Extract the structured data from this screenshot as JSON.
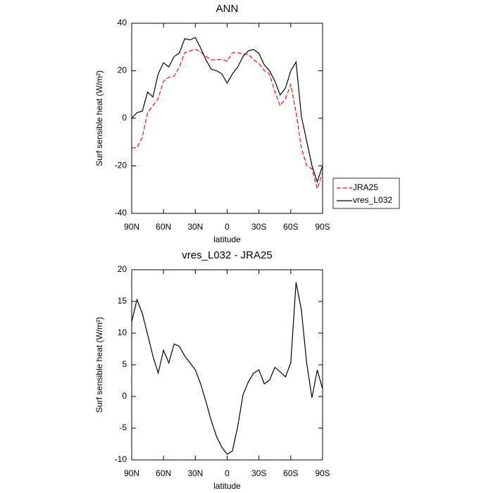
{
  "chart_data": [
    {
      "type": "line",
      "title": "ANN",
      "xlabel": "latitude",
      "ylabel": "Surf sensible heat (W/m²)",
      "x": [
        90,
        85,
        80,
        75,
        70,
        65,
        60,
        55,
        50,
        45,
        40,
        35,
        30,
        25,
        20,
        15,
        10,
        5,
        0,
        -5,
        -10,
        -15,
        -20,
        -25,
        -30,
        -35,
        -40,
        -45,
        -50,
        -55,
        -60,
        -65,
        -70,
        -75,
        -80,
        -85,
        -90
      ],
      "series": [
        {
          "name": "JRA25",
          "color": "#ff0000",
          "linestyle": "dashed",
          "values": [
            -12.4,
            -12.4,
            -8,
            2.4,
            5.3,
            8.3,
            15.7,
            17.2,
            17.8,
            21.6,
            27.6,
            28.4,
            29,
            28,
            26,
            24.6,
            24.6,
            24.9,
            24,
            27.6,
            27.6,
            27,
            27,
            24.6,
            23.1,
            20.1,
            18.7,
            11.3,
            5.3,
            8.3,
            14.2,
            2.4,
            -12.4,
            -19.9,
            -21.3,
            -29.6,
            -22.8
          ]
        },
        {
          "name": "vres_L032",
          "color": "#000000",
          "linestyle": "solid",
          "values": [
            0,
            2.4,
            3,
            11,
            9,
            18.7,
            23.4,
            21.6,
            26,
            27.5,
            33.5,
            33,
            34,
            29.6,
            24.6,
            20.7,
            20,
            18.7,
            14.8,
            18.7,
            21.6,
            26,
            28.4,
            29,
            27.3,
            22.5,
            20,
            15.7,
            9.8,
            12.7,
            20,
            23.7,
            0.9,
            -9.5,
            -19.9,
            -26.7,
            -20
          ]
        }
      ],
      "xlim": [
        90,
        -90
      ],
      "xticks": [
        {
          "value": 90,
          "label": "90N"
        },
        {
          "value": 60,
          "label": "60N"
        },
        {
          "value": 30,
          "label": "30N"
        },
        0,
        {
          "value": -30,
          "label": "30S"
        },
        {
          "value": -60,
          "label": "60S"
        },
        {
          "value": -90,
          "label": "90S"
        }
      ],
      "ylim": [
        -40,
        40
      ],
      "yticks": [
        -40,
        -20,
        0,
        20,
        40
      ],
      "legend": "right"
    },
    {
      "type": "line",
      "title": "vres_L032 - JRA25",
      "xlabel": "latitude",
      "ylabel": "Surf sensible heat (W/m²)",
      "x": [
        90,
        85,
        80,
        75,
        70,
        65,
        60,
        55,
        50,
        45,
        40,
        35,
        30,
        25,
        20,
        15,
        10,
        5,
        0,
        -5,
        -10,
        -15,
        -20,
        -25,
        -30,
        -35,
        -40,
        -45,
        -50,
        -55,
        -60,
        -65,
        -70,
        -75,
        -80,
        -85,
        -90
      ],
      "values": [
        11.8,
        15.3,
        13.1,
        9.8,
        6.4,
        3.7,
        7.3,
        5.3,
        8.3,
        7.9,
        6.4,
        5.3,
        4.2,
        2,
        -0.8,
        -3.8,
        -6.3,
        -8,
        -9.1,
        -8.6,
        -4.7,
        0.3,
        2.3,
        3.7,
        4.2,
        2,
        2.6,
        4.6,
        3.9,
        3.1,
        5.3,
        18,
        13.7,
        5.3,
        -0.2,
        4.2,
        1.2
      ],
      "color": "#000000",
      "xlim": [
        90,
        -90
      ],
      "xticks": [
        {
          "value": 90,
          "label": "90N"
        },
        {
          "value": 60,
          "label": "60N"
        },
        {
          "value": 30,
          "label": "30N"
        },
        0,
        {
          "value": -30,
          "label": "30S"
        },
        {
          "value": -60,
          "label": "60S"
        },
        {
          "value": -90,
          "label": "90S"
        }
      ],
      "ylim": [
        -10,
        20
      ],
      "yticks": [
        -10,
        -5,
        0,
        5,
        10,
        15,
        20
      ]
    }
  ]
}
